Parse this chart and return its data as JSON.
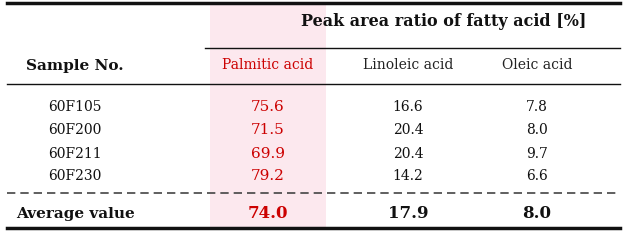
{
  "title": "Peak area ratio of fatty acid [%]",
  "sample_no_label": "Sample No.",
  "col_headers": [
    "Palmitic acid",
    "Linoleic acid",
    "Oleic acid"
  ],
  "col_header_colors": [
    "#cc0000",
    "#222222",
    "#222222"
  ],
  "rows": [
    [
      "60F105",
      "75.6",
      "16.6",
      "7.8"
    ],
    [
      "60F200",
      "71.5",
      "20.4",
      "8.0"
    ],
    [
      "60F211",
      "69.9",
      "20.4",
      "9.7"
    ],
    [
      "60F230",
      "79.2",
      "14.2",
      "6.6"
    ]
  ],
  "avg_row": [
    "Average value",
    "74.0",
    "17.9",
    "8.0"
  ],
  "palmitic_col_bg": "#fce8ee",
  "bg_color": "#ffffff",
  "border_color": "#111111",
  "dashed_color": "#444444",
  "red_color": "#cc0000",
  "black_color": "#111111",
  "figsize": [
    6.27,
    2.31
  ],
  "dpi": 100
}
